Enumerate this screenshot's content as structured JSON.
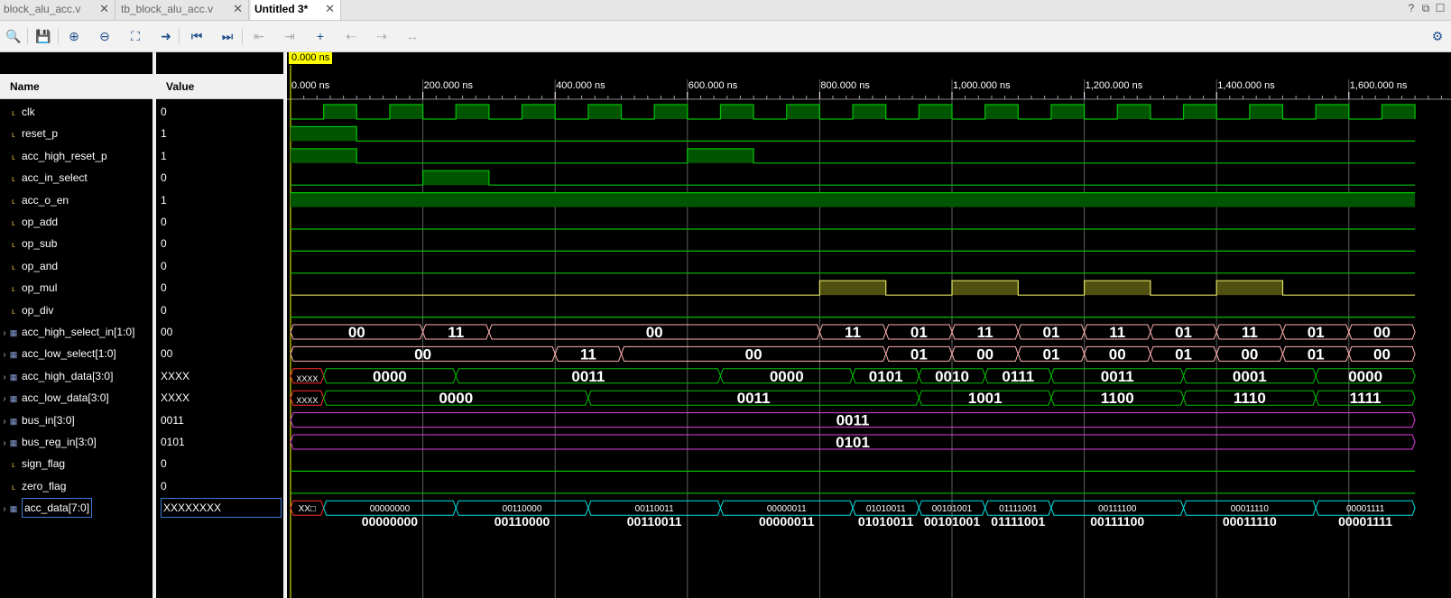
{
  "tabs": [
    {
      "label": "block_alu_acc.v",
      "active": false
    },
    {
      "label": "tb_block_alu_acc.v",
      "active": false
    },
    {
      "label": "Untitled 3*",
      "active": true
    }
  ],
  "window_controls": {
    "help": "?",
    "restore": "⧉",
    "max": "☐"
  },
  "toolbar": [
    {
      "name": "search-icon",
      "glyph": "🔍",
      "enabled": true
    },
    {
      "name": "save-icon",
      "glyph": "💾",
      "enabled": true
    },
    {
      "name": "zoom-in-icon",
      "glyph": "⊕",
      "enabled": true
    },
    {
      "name": "zoom-out-icon",
      "glyph": "⊖",
      "enabled": true
    },
    {
      "name": "zoom-fit-icon",
      "glyph": "⛶",
      "enabled": true
    },
    {
      "name": "go-to-cursor-icon",
      "glyph": "➜",
      "enabled": true
    },
    {
      "name": "go-to-start-icon",
      "glyph": "⏮",
      "enabled": true
    },
    {
      "name": "go-to-end-icon",
      "glyph": "⏭",
      "enabled": true
    },
    {
      "name": "previous-transition-icon",
      "glyph": "⇤",
      "enabled": false
    },
    {
      "name": "next-transition-icon",
      "glyph": "⇥",
      "enabled": false
    },
    {
      "name": "add-marker-icon",
      "glyph": "+",
      "enabled": true
    },
    {
      "name": "previous-marker-icon",
      "glyph": "⇠",
      "enabled": false
    },
    {
      "name": "next-marker-icon",
      "glyph": "⇢",
      "enabled": false
    },
    {
      "name": "swap-cursors-icon",
      "glyph": "↔",
      "enabled": false
    }
  ],
  "panes": {
    "name_header": "Name",
    "value_header": "Value"
  },
  "cursor": {
    "label": "0.000 ns",
    "time_ns": 0
  },
  "time_axis": {
    "ticks": [
      {
        "t": 0,
        "label": "0.000 ns"
      },
      {
        "t": 200000,
        "label": "200.000 ns"
      },
      {
        "t": 400000,
        "label": "400.000 ns"
      },
      {
        "t": 600000,
        "label": "600.000 ns"
      },
      {
        "t": 800000,
        "label": "800.000 ns"
      },
      {
        "t": 1000000,
        "label": "1,000.000 ns"
      },
      {
        "t": 1200000,
        "label": "1,200.000 ns"
      },
      {
        "t": 1400000,
        "label": "1,400.000 ns"
      },
      {
        "t": 1600000,
        "label": "1,600.000 ns"
      }
    ],
    "t_max": 1700000
  },
  "colors": {
    "green": "#00c000",
    "green_fill": "#005500",
    "yellow": "#e0e060",
    "yellow_fill": "#505010",
    "pink": "#ffb0b0",
    "cyan": "#00e0e0",
    "magenta": "#e040e0",
    "red": "#ff3030",
    "grid": "#606060"
  },
  "signals": [
    {
      "name": "clk",
      "value": "0",
      "type": "bit",
      "color": "green",
      "edges": [
        0,
        50000,
        100000,
        150000,
        200000,
        250000,
        300000,
        350000,
        400000,
        450000,
        500000,
        550000,
        600000,
        650000,
        700000,
        750000,
        800000,
        850000,
        900000,
        950000,
        1000000,
        1050000,
        1100000,
        1150000,
        1200000,
        1250000,
        1300000,
        1350000,
        1400000,
        1450000,
        1500000,
        1550000,
        1600000,
        1650000,
        1700000
      ],
      "start": 0
    },
    {
      "name": "reset_p",
      "value": "1",
      "type": "bit",
      "color": "green",
      "edges": [
        0,
        100000
      ],
      "start": 1
    },
    {
      "name": "acc_high_reset_p",
      "value": "1",
      "type": "bit",
      "color": "green",
      "edges": [
        0,
        100000,
        600000,
        700000
      ],
      "start": 1
    },
    {
      "name": "acc_in_select",
      "value": "0",
      "type": "bit",
      "color": "green",
      "edges": [
        0,
        200000,
        300000
      ],
      "start": 0
    },
    {
      "name": "acc_o_en",
      "value": "1",
      "type": "bit",
      "color": "green",
      "edges": [
        0
      ],
      "start": 1
    },
    {
      "name": "op_add",
      "value": "0",
      "type": "bit",
      "color": "green",
      "edges": [
        0
      ],
      "start": 0
    },
    {
      "name": "op_sub",
      "value": "0",
      "type": "bit",
      "color": "green",
      "edges": [
        0
      ],
      "start": 0
    },
    {
      "name": "op_and",
      "value": "0",
      "type": "bit",
      "color": "green",
      "edges": [
        0
      ],
      "start": 0
    },
    {
      "name": "op_mul",
      "value": "0",
      "type": "bit",
      "color": "yellow",
      "edges": [
        0,
        800000,
        900000,
        1000000,
        1100000,
        1200000,
        1300000,
        1400000,
        1500000
      ],
      "start": 0
    },
    {
      "name": "op_div",
      "value": "0",
      "type": "bit",
      "color": "green",
      "edges": [
        0
      ],
      "start": 0
    },
    {
      "name": "acc_high_select_in[1:0]",
      "value": "00",
      "type": "bus",
      "color": "pink",
      "segments": [
        [
          0,
          200000,
          "00"
        ],
        [
          200000,
          300000,
          "11"
        ],
        [
          300000,
          800000,
          "00"
        ],
        [
          800000,
          900000,
          "11"
        ],
        [
          900000,
          1000000,
          "01"
        ],
        [
          1000000,
          1100000,
          "11"
        ],
        [
          1100000,
          1200000,
          "01"
        ],
        [
          1200000,
          1300000,
          "11"
        ],
        [
          1300000,
          1400000,
          "01"
        ],
        [
          1400000,
          1500000,
          "11"
        ],
        [
          1500000,
          1600000,
          "01"
        ],
        [
          1600000,
          1700000,
          "00"
        ]
      ]
    },
    {
      "name": "acc_low_select[1:0]",
      "value": "00",
      "type": "bus",
      "color": "pink",
      "segments": [
        [
          0,
          400000,
          "00"
        ],
        [
          400000,
          500000,
          "11"
        ],
        [
          500000,
          900000,
          "00"
        ],
        [
          900000,
          1000000,
          "01"
        ],
        [
          1000000,
          1100000,
          "00"
        ],
        [
          1100000,
          1200000,
          "01"
        ],
        [
          1200000,
          1300000,
          "00"
        ],
        [
          1300000,
          1400000,
          "01"
        ],
        [
          1400000,
          1500000,
          "00"
        ],
        [
          1500000,
          1600000,
          "01"
        ],
        [
          1600000,
          1700000,
          "00"
        ]
      ]
    },
    {
      "name": "acc_high_data[3:0]",
      "value": "XXXX",
      "type": "bus",
      "color": "green",
      "segments": [
        [
          0,
          50000,
          "XXXX",
          "x"
        ],
        [
          50000,
          250000,
          "0000"
        ],
        [
          250000,
          650000,
          "0011"
        ],
        [
          650000,
          850000,
          "0000"
        ],
        [
          850000,
          950000,
          "0101"
        ],
        [
          950000,
          1050000,
          "0010"
        ],
        [
          1050000,
          1150000,
          "0111"
        ],
        [
          1150000,
          1350000,
          "0011"
        ],
        [
          1350000,
          1550000,
          "0001"
        ],
        [
          1550000,
          1700000,
          "0000"
        ]
      ]
    },
    {
      "name": "acc_low_data[3:0]",
      "value": "XXXX",
      "type": "bus",
      "color": "green",
      "segments": [
        [
          0,
          50000,
          "XXXX",
          "x"
        ],
        [
          50000,
          450000,
          "0000"
        ],
        [
          450000,
          950000,
          "0011"
        ],
        [
          950000,
          1150000,
          "1001"
        ],
        [
          1150000,
          1350000,
          "1100"
        ],
        [
          1350000,
          1550000,
          "1110"
        ],
        [
          1550000,
          1700000,
          "1111"
        ]
      ]
    },
    {
      "name": "bus_in[3:0]",
      "value": "0011",
      "type": "bus",
      "color": "magenta",
      "segments": [
        [
          0,
          1700000,
          "0011"
        ]
      ]
    },
    {
      "name": "bus_reg_in[3:0]",
      "value": "0101",
      "type": "bus",
      "color": "magenta",
      "segments": [
        [
          0,
          1700000,
          "0101"
        ]
      ]
    },
    {
      "name": "sign_flag",
      "value": "0",
      "type": "bit",
      "color": "green",
      "edges": [
        0
      ],
      "start": 0
    },
    {
      "name": "zero_flag",
      "value": "0",
      "type": "bit",
      "color": "green",
      "edges": [
        0
      ],
      "start": 0
    },
    {
      "name": "acc_data[7:0]",
      "value": "XXXXXXXX",
      "type": "bus8",
      "color": "cyan",
      "selected": true,
      "segments": [
        [
          0,
          50000,
          "XX□",
          "x"
        ],
        [
          50000,
          250000,
          "00000000"
        ],
        [
          250000,
          450000,
          "00110000"
        ],
        [
          450000,
          650000,
          "00110011"
        ],
        [
          650000,
          850000,
          "00000011"
        ],
        [
          850000,
          950000,
          "01010011"
        ],
        [
          950000,
          1050000,
          "00101001"
        ],
        [
          1050000,
          1150000,
          "01111001"
        ],
        [
          1150000,
          1350000,
          "00111100"
        ],
        [
          1350000,
          1550000,
          "00011110"
        ],
        [
          1550000,
          1700000,
          "00001111"
        ]
      ]
    }
  ]
}
